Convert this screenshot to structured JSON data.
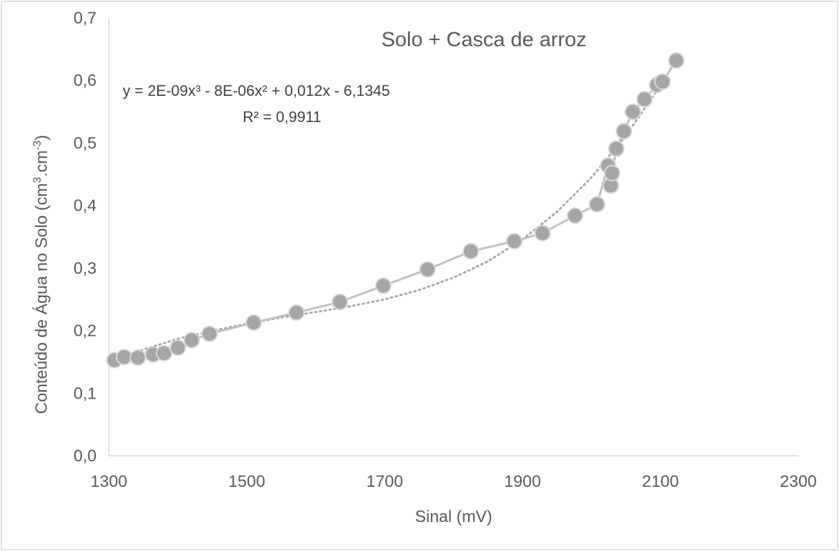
{
  "chart_data": {
    "type": "scatter",
    "title": "Solo + Casca de arroz",
    "xlabel": "Sinal (mV)",
    "ylabel_main": "Conteúdo de Água no Solo (cm",
    "ylabel_sup1": "3",
    "ylabel_mid": ".cm",
    "ylabel_sup2": "-3",
    "ylabel_end": ")",
    "xlim": [
      1300,
      2300
    ],
    "ylim": [
      0,
      0.7
    ],
    "x_ticks": [
      "1300",
      "1500",
      "1700",
      "1900",
      "2100",
      "2300"
    ],
    "y_ticks": [
      "0,0",
      "0,1",
      "0,2",
      "0,3",
      "0,4",
      "0,5",
      "0,6",
      "0,7"
    ],
    "grid": false,
    "marker_color": "#a6a6a6",
    "line_color": "#bfbfbf",
    "trendline": {
      "type": "polynomial",
      "order": 3,
      "style": "dotted",
      "color": "#a6a6a6",
      "equation": "y = 2E-09x³ - 8E-06x² + 0,012x - 6,1345",
      "r2": "R² = 0,9911",
      "x": [
        1308,
        1350,
        1400,
        1450,
        1500,
        1550,
        1600,
        1650,
        1700,
        1750,
        1800,
        1850,
        1900,
        1950,
        2000,
        2050,
        2100,
        2124
      ],
      "y": [
        0.15,
        0.17,
        0.187,
        0.2,
        0.211,
        0.221,
        0.23,
        0.239,
        0.25,
        0.265,
        0.285,
        0.311,
        0.346,
        0.39,
        0.445,
        0.512,
        0.592,
        0.635
      ]
    },
    "series": [
      {
        "x": [
          1308,
          1322,
          1342,
          1364,
          1380,
          1400,
          1420,
          1446,
          1510,
          1572,
          1635,
          1698,
          1762,
          1825,
          1888,
          1929,
          1976,
          2008,
          2024,
          2028,
          2030,
          2036,
          2047,
          2060,
          2077,
          2095,
          2103,
          2123
        ],
        "y": [
          0.153,
          0.158,
          0.157,
          0.162,
          0.164,
          0.173,
          0.185,
          0.195,
          0.213,
          0.229,
          0.246,
          0.272,
          0.298,
          0.327,
          0.343,
          0.356,
          0.384,
          0.402,
          0.464,
          0.432,
          0.452,
          0.491,
          0.519,
          0.55,
          0.57,
          0.593,
          0.598,
          0.632
        ]
      }
    ]
  }
}
